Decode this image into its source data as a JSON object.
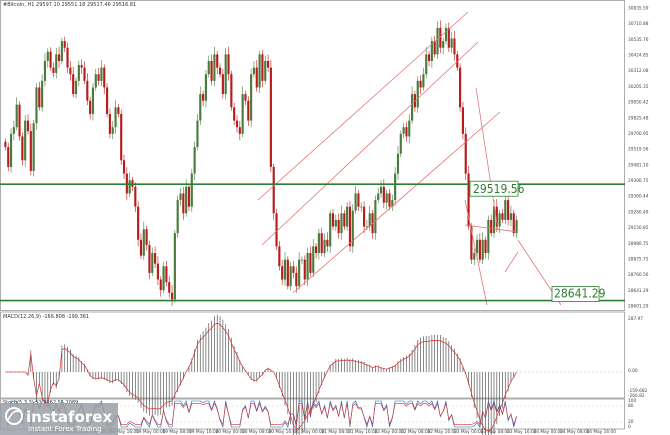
{
  "chart_data": [
    {
      "type": "candlestick",
      "header": "#Bitcoin, H1  29597.10 29551.18 29517.46 29516.81",
      "yticks": [
        "30835.59",
        "30710.88",
        "30535.76",
        "30424.85",
        "30312.08",
        "30205.35",
        "29950.42",
        "29825.48",
        "29700.95",
        "29519.56",
        "29481.10",
        "29390.75",
        "29360.44",
        "29260.49",
        "29150.85",
        "28980.75",
        "28875.75",
        "28760.56",
        "28641.29",
        "28601.29"
      ],
      "xticks": [
        "17 May 2022",
        "18 May 00:00",
        "18 May 08:00",
        "18 May 16:00",
        "19 May 00:00",
        "19 May 08:00",
        "19 May 16:00",
        "20 May 00:00",
        "20 May 08:00",
        "20 May 16:00",
        "21 May 00:00",
        "21 May 08:00",
        "21 May 16:00",
        "22 May 00:00",
        "22 May 08:00",
        "22 May 16:00",
        "23 May 00:00",
        "23 May 08:00",
        "23 May 16:00",
        "24 May 00:00",
        "24 May 08:00",
        "24 May 16:00"
      ],
      "ylim": [
        28600,
        30850
      ],
      "close": [
        29800,
        29650,
        29900,
        29950,
        30120,
        29880,
        29700,
        30000,
        29920,
        29620,
        29980,
        30250,
        30100,
        30300,
        30450,
        30520,
        30400,
        30360,
        30500,
        30450,
        30600,
        30550,
        30400,
        30350,
        30200,
        30300,
        30420,
        30400,
        30300,
        30150,
        30050,
        30250,
        30350,
        30300,
        30400,
        30250,
        30050,
        29900,
        29950,
        30100,
        30050,
        29700,
        29600,
        29450,
        29550,
        29500,
        29350,
        29100,
        28980,
        29180,
        29060,
        28850,
        29000,
        28920,
        28800,
        28720,
        28900,
        28780,
        28700,
        28650,
        29150,
        29400,
        29450,
        29300,
        29500,
        29350,
        29600,
        29800,
        30000,
        30200,
        30150,
        30350,
        30450,
        30300,
        30500,
        30400,
        30350,
        30200,
        30500,
        30350,
        30100,
        30000,
        29950,
        29900,
        30200,
        30150,
        30000,
        30350,
        30400,
        30250,
        30500,
        30300,
        30450,
        30400,
        29650,
        29300,
        29050,
        28900,
        28800,
        28950,
        28750,
        28900,
        28850,
        28750,
        28950,
        28950,
        28800,
        29000,
        28850,
        29050,
        29000,
        29150,
        29000,
        29100,
        29050,
        29300,
        29200,
        29250,
        29150,
        29300,
        29200,
        29350,
        29050,
        29320,
        29450,
        29350,
        29350,
        29200,
        29200,
        29300,
        29150,
        29400,
        29450,
        29500,
        29380,
        29450,
        29350,
        29400,
        29600,
        29750,
        29900,
        29950,
        29880,
        30000,
        30200,
        30100,
        30300,
        30250,
        30350,
        30500,
        30450,
        30600,
        30500,
        30700,
        30550,
        30600,
        30700,
        30550,
        30620,
        30500,
        30400,
        30100,
        29900,
        29600,
        29200,
        28950,
        29000,
        29100,
        28950,
        29100,
        29000,
        29250,
        29150,
        29350,
        29200,
        29300,
        29250,
        29400,
        29250,
        29300,
        29150,
        29250
      ],
      "ma_ema": [],
      "resistance": {
        "label": "29519.56",
        "value": 29519.56
      },
      "support": {
        "label": "28641.29",
        "value": 28641.29
      }
    },
    {
      "type": "macd",
      "header": "MACD(12,26,9) -166.808 -199.361",
      "yticks": [
        "287.97",
        "0.00",
        "-159.682",
        "-266.82"
      ],
      "ylim": [
        -320,
        320
      ]
    },
    {
      "type": "stochastic",
      "header": "Stoch(5,3,3) 51.9262 55.2089",
      "yticks": [
        "100",
        "80",
        "20",
        "0"
      ],
      "ylim": [
        0,
        100
      ]
    }
  ],
  "logo": {
    "brand": "instaforex",
    "tagline": "Instant Forex Trading"
  }
}
